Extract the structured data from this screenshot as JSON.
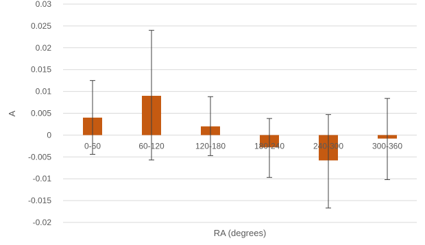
{
  "chart_data": {
    "type": "bar",
    "xlabel": "RA (degrees)",
    "ylabel": "A",
    "categories": [
      "0-60",
      "60-120",
      "120-180",
      "180-240",
      "240-300",
      "300-360"
    ],
    "values": [
      0.004,
      0.009,
      0.002,
      -0.0028,
      -0.0058,
      -0.0008
    ],
    "error_low": [
      -0.0044,
      -0.0057,
      -0.0047,
      -0.0097,
      -0.0167,
      -0.0102
    ],
    "error_high": [
      0.0125,
      0.024,
      0.0088,
      0.0038,
      0.0047,
      0.0084
    ],
    "ylim": [
      -0.02,
      0.03
    ],
    "yticks": [
      "0.03",
      "0.025",
      "0.02",
      "0.015",
      "0.01",
      "0.005",
      "0",
      "-0.005",
      "-0.01",
      "-0.015",
      "-0.02"
    ],
    "grid": true,
    "legend": "none",
    "colors": {
      "bar": "#c55a11",
      "error_bar": "#404040",
      "grid": "#d9d9d9"
    }
  }
}
